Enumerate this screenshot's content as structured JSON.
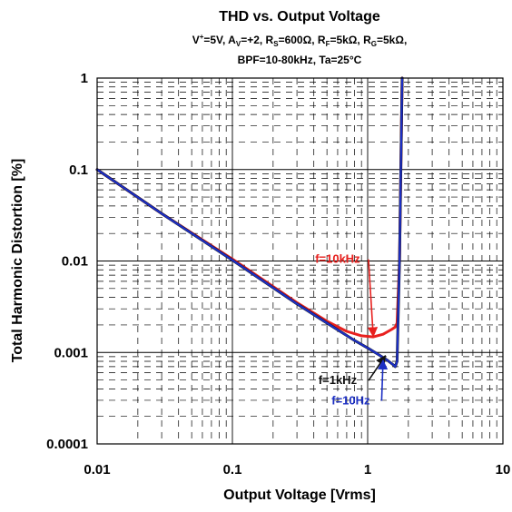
{
  "chart_data": {
    "type": "line",
    "title": "THD vs. Output Voltage",
    "subtitle_line1": {
      "runs": [
        {
          "t": "V",
          "s": "n"
        },
        {
          "t": "+",
          "s": "sup"
        },
        {
          "t": "=5V, A",
          "s": "n"
        },
        {
          "t": "V",
          "s": "sub"
        },
        {
          "t": "=+2, R",
          "s": "n"
        },
        {
          "t": "S",
          "s": "sub"
        },
        {
          "t": "=600Ω, R",
          "s": "n"
        },
        {
          "t": "F",
          "s": "sub"
        },
        {
          "t": "=5kΩ, R",
          "s": "n"
        },
        {
          "t": "G",
          "s": "sub"
        },
        {
          "t": "=5kΩ,",
          "s": "n"
        }
      ]
    },
    "subtitle_line2": "BPF=10-80kHz, Ta=25°C",
    "xlabel": "Output Voltage [Vrms]",
    "ylabel": "Total Harmonic Distortion [%]",
    "x_scale": "log",
    "y_scale": "log",
    "xlim": [
      0.01,
      10
    ],
    "ylim": [
      0.0001,
      1
    ],
    "x_ticks": [
      {
        "value": 0.01,
        "label": "0.01"
      },
      {
        "value": 0.1,
        "label": "0.1"
      },
      {
        "value": 1,
        "label": "1"
      },
      {
        "value": 10,
        "label": "10"
      }
    ],
    "y_ticks": [
      {
        "value": 1,
        "label": "1"
      },
      {
        "value": 0.1,
        "label": "0.1"
      },
      {
        "value": 0.01,
        "label": "0.01"
      },
      {
        "value": 0.001,
        "label": "0.001"
      },
      {
        "value": 0.0001,
        "label": "0.0001"
      }
    ],
    "grid": "major solid, minor dashed",
    "series": [
      {
        "name": "f=10kHz",
        "color": "#e8201e",
        "x": [
          0.01,
          0.03,
          0.1,
          0.3,
          0.5,
          0.7,
          0.9,
          1.1,
          1.3,
          1.5,
          1.6,
          1.65,
          1.72,
          1.8
        ],
        "y": [
          0.1,
          0.033,
          0.0105,
          0.0035,
          0.0022,
          0.0017,
          0.00152,
          0.00148,
          0.00158,
          0.00178,
          0.0019,
          0.0021,
          0.01,
          1
        ]
      },
      {
        "name": "f=1kHz",
        "color": "#111111",
        "x": [
          0.01,
          0.03,
          0.1,
          0.3,
          0.5,
          0.8,
          1.0,
          1.2,
          1.4,
          1.55,
          1.6,
          1.65,
          1.72,
          1.8
        ],
        "y": [
          0.1,
          0.033,
          0.0102,
          0.0034,
          0.0021,
          0.00135,
          0.00112,
          0.00095,
          0.00082,
          0.00073,
          0.0007,
          0.0008,
          0.01,
          1
        ]
      },
      {
        "name": "f=10Hz",
        "color": "#1c2fc4",
        "x": [
          0.01,
          0.03,
          0.1,
          0.3,
          0.5,
          0.8,
          1.0,
          1.2,
          1.4,
          1.55,
          1.6,
          1.65,
          1.72,
          1.8
        ],
        "y": [
          0.1,
          0.033,
          0.0102,
          0.0034,
          0.0021,
          0.00135,
          0.00112,
          0.00095,
          0.00082,
          0.00073,
          0.0007,
          0.0008,
          0.01,
          1
        ]
      }
    ],
    "annotations": [
      {
        "text": "f=10kHz",
        "color": "#e8201e",
        "at_x": 1.1,
        "at_y": 0.0015,
        "label_x": 0.6,
        "label_y": 0.0095
      },
      {
        "text": "f=1kHz",
        "color": "#111111",
        "at_x": 1.35,
        "at_y": 0.00092,
        "label_x": 0.6,
        "label_y": 0.00045
      },
      {
        "text": "f=10Hz",
        "color": "#1c2fc4",
        "at_x": 1.3,
        "at_y": 0.00082,
        "label_x": 0.75,
        "label_y": 0.00027
      }
    ]
  }
}
